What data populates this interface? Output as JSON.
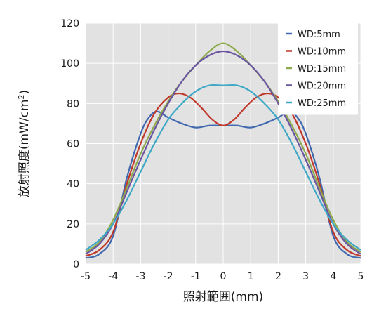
{
  "chart_data": {
    "type": "line",
    "title": "",
    "xlabel": "照射範囲(mm)",
    "ylabel": "放射照度(mW/cm2)",
    "ylabel_base": "放射照度(mW/cm",
    "ylabel_sup": "2",
    "ylabel_close": ")",
    "xlim": [
      -5,
      5
    ],
    "ylim": [
      0,
      120
    ],
    "x_ticks": [
      "-5",
      "-4",
      "-3",
      "-2",
      "-1",
      "0",
      "1",
      "2",
      "3",
      "4",
      "5"
    ],
    "y_ticks": [
      "0",
      "20",
      "40",
      "60",
      "80",
      "100",
      "120"
    ],
    "grid": true,
    "legend_position": "top-right",
    "background": "#e2e2e2",
    "series": [
      {
        "name": "WD:5mm",
        "color": "#4169b0",
        "x": [
          -5,
          -4.5,
          -4,
          -3.5,
          -3,
          -2.7,
          -2.4,
          -2,
          -1.5,
          -1,
          -0.5,
          0,
          0.5,
          1,
          1.5,
          2,
          2.4,
          2.7,
          3,
          3.5,
          4,
          4.5,
          5
        ],
        "y": [
          3,
          5,
          14,
          43,
          65,
          73,
          76,
          73,
          70,
          68,
          69,
          69,
          69,
          68,
          70,
          73,
          76,
          73,
          65,
          43,
          14,
          5,
          3
        ]
      },
      {
        "name": "WD:10mm",
        "color": "#c0392b",
        "x": [
          -5,
          -4.5,
          -4,
          -3.5,
          -3,
          -2.5,
          -2,
          -1.6,
          -1.2,
          -0.8,
          -0.4,
          0,
          0.4,
          0.8,
          1.2,
          1.6,
          2,
          2.5,
          3,
          3.5,
          4,
          4.5,
          5
        ],
        "y": [
          4,
          7,
          16,
          40,
          60,
          75,
          83,
          85,
          83,
          78,
          72,
          69,
          72,
          78,
          83,
          85,
          83,
          75,
          60,
          40,
          16,
          7,
          4
        ]
      },
      {
        "name": "WD:15mm",
        "color": "#8eaa4c",
        "x": [
          -5,
          -4.5,
          -4,
          -3.5,
          -3,
          -2.5,
          -2,
          -1.5,
          -1,
          -0.5,
          0,
          0.5,
          1,
          1.5,
          2,
          2.5,
          3,
          3.5,
          4,
          4.5,
          5
        ],
        "y": [
          6,
          11,
          22,
          38,
          55,
          69,
          81,
          91,
          99,
          106,
          110,
          106,
          99,
          91,
          81,
          69,
          55,
          38,
          22,
          11,
          6
        ]
      },
      {
        "name": "WD:20mm",
        "color": "#6a55a0",
        "x": [
          -5,
          -4.5,
          -4,
          -3.5,
          -3,
          -2.5,
          -2,
          -1.5,
          -1,
          -0.5,
          0,
          0.5,
          1,
          1.5,
          2,
          2.5,
          3,
          3.5,
          4,
          4.5,
          5
        ],
        "y": [
          5,
          10,
          20,
          36,
          52,
          67,
          80,
          91,
          99,
          104,
          106,
          104,
          99,
          91,
          80,
          67,
          52,
          36,
          20,
          10,
          5
        ]
      },
      {
        "name": "WD:25mm",
        "color": "#3fa8c6",
        "x": [
          -5,
          -4.5,
          -4,
          -3.5,
          -3,
          -2.5,
          -2,
          -1.5,
          -1,
          -0.5,
          0,
          0.5,
          1,
          1.5,
          2,
          2.5,
          3,
          3.5,
          4,
          4.5,
          5
        ],
        "y": [
          7,
          12,
          20,
          32,
          46,
          60,
          72,
          80,
          86,
          89,
          89,
          89,
          86,
          80,
          72,
          60,
          46,
          32,
          20,
          12,
          7
        ]
      }
    ]
  }
}
